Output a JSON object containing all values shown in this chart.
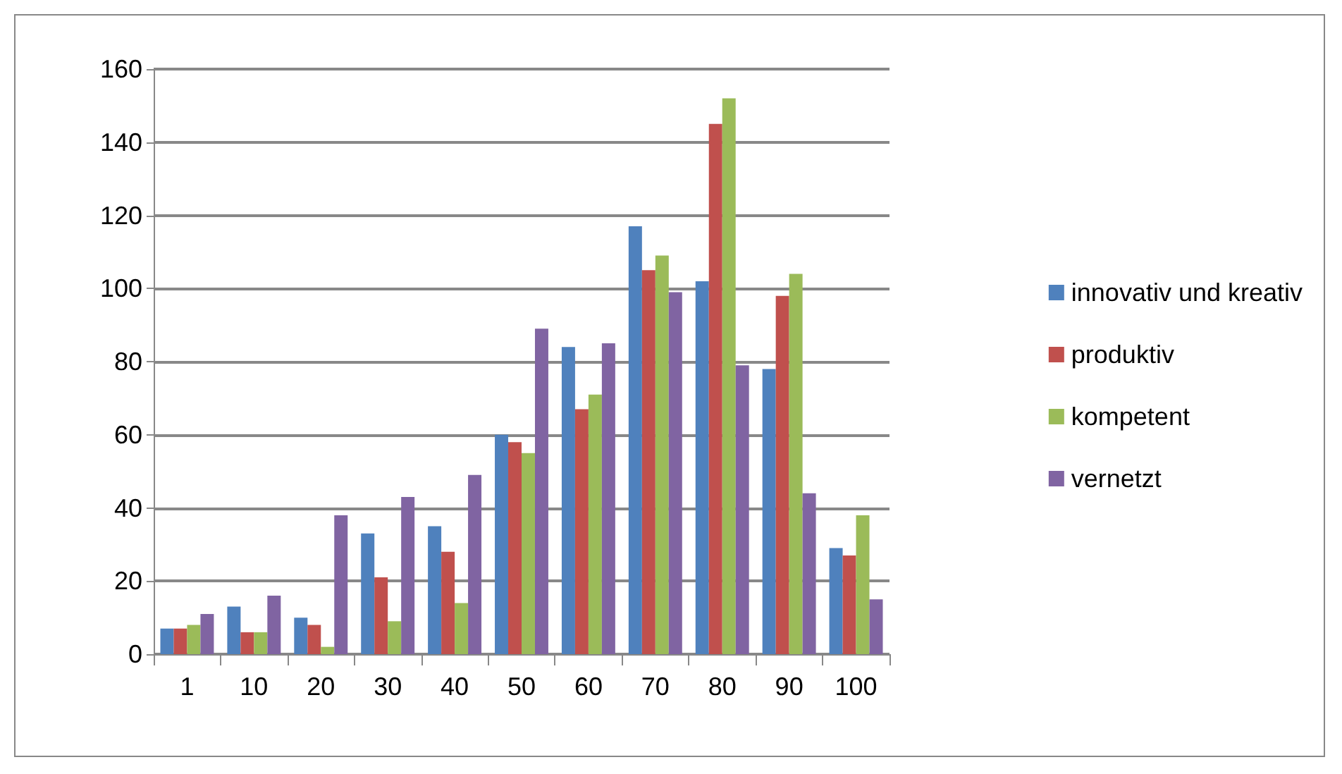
{
  "chart_data": {
    "type": "bar",
    "categories": [
      "1",
      "10",
      "20",
      "30",
      "40",
      "50",
      "60",
      "70",
      "80",
      "90",
      "100"
    ],
    "series": [
      {
        "name": "innovativ und kreativ",
        "color": "#4f81bd",
        "values": [
          7,
          13,
          10,
          33,
          35,
          60,
          84,
          117,
          102,
          78,
          29
        ]
      },
      {
        "name": "produktiv",
        "color": "#c0504d",
        "values": [
          7,
          6,
          8,
          21,
          28,
          58,
          67,
          105,
          145,
          98,
          27
        ]
      },
      {
        "name": "kompetent",
        "color": "#9bbb59",
        "values": [
          8,
          6,
          2,
          9,
          14,
          55,
          71,
          109,
          152,
          104,
          38
        ]
      },
      {
        "name": "vernetzt",
        "color": "#8064a2",
        "values": [
          11,
          16,
          38,
          43,
          49,
          89,
          85,
          99,
          79,
          44,
          15
        ]
      }
    ],
    "ylim": [
      0,
      160
    ],
    "yticks": [
      0,
      20,
      40,
      60,
      80,
      100,
      120,
      140,
      160
    ],
    "grid": "y",
    "legend": "right"
  }
}
